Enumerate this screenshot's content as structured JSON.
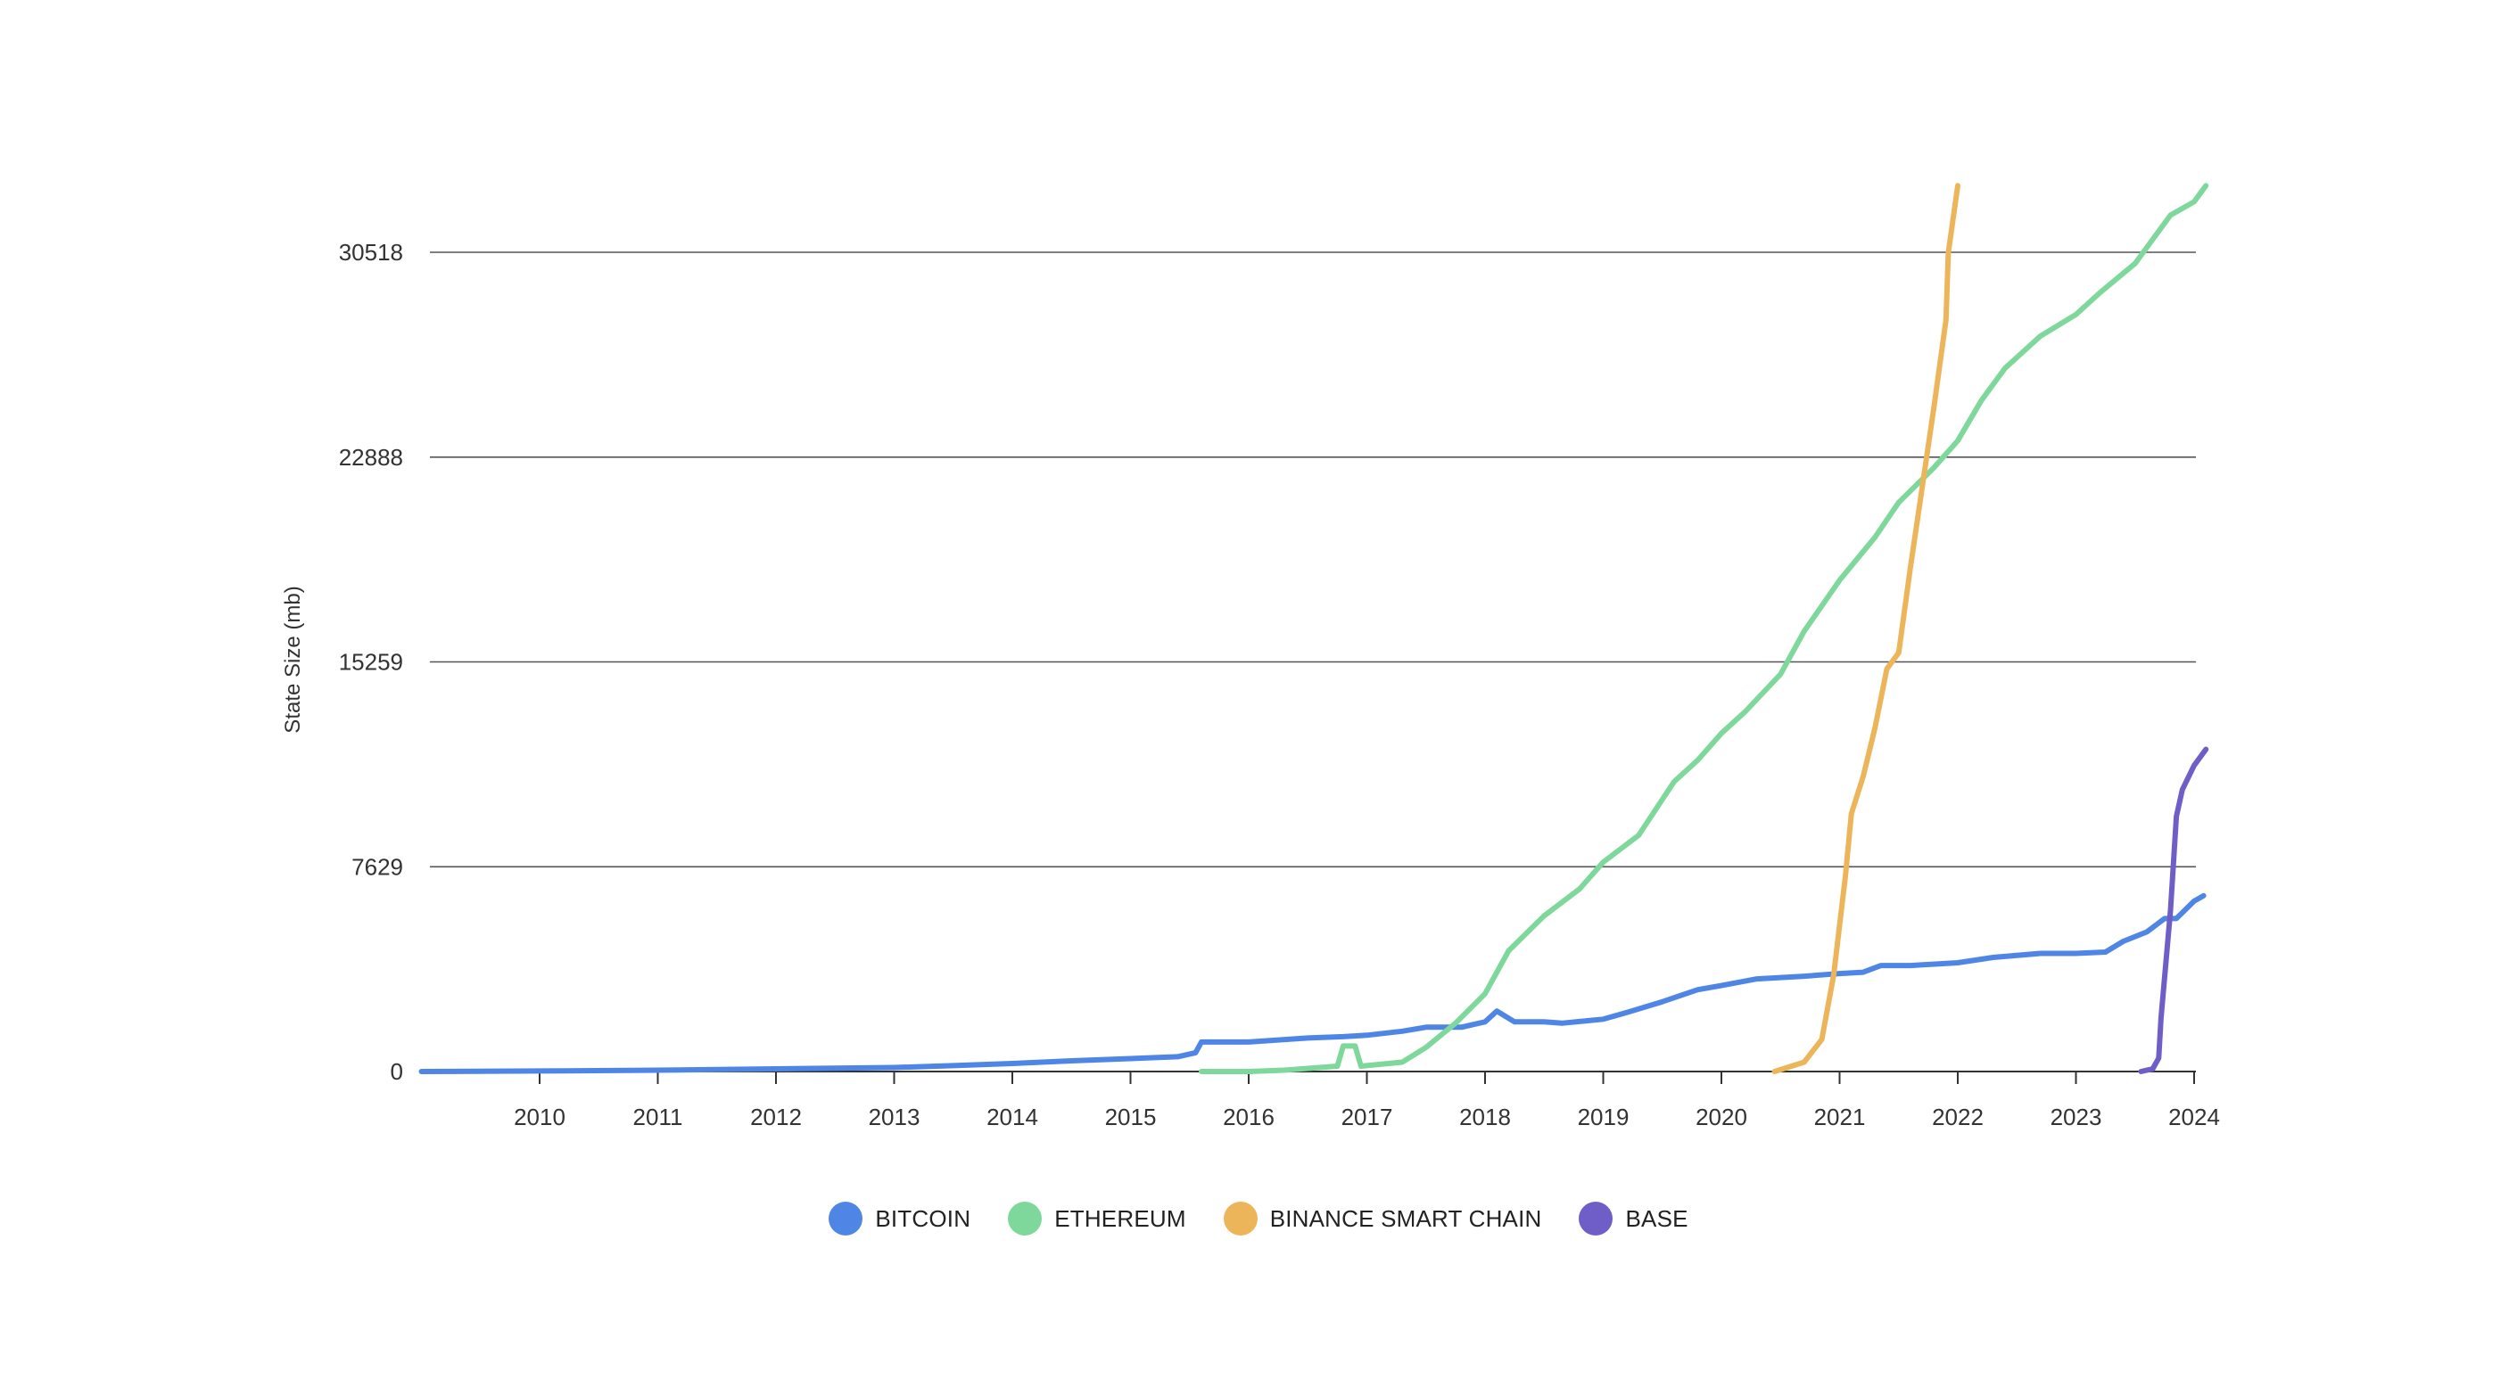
{
  "chart_data": {
    "type": "line",
    "title": "",
    "xlabel": "",
    "ylabel": "State Size (mb)",
    "xlim": [
      2009.0,
      2024.0
    ],
    "ylim": [
      0,
      33000
    ],
    "yticks": [
      0,
      7629,
      15259,
      22888,
      30518
    ],
    "ytick_labels": [
      "0",
      "7629",
      "15259",
      "22888",
      "30518"
    ],
    "xticks": [
      2010,
      2011,
      2012,
      2013,
      2014,
      2015,
      2016,
      2017,
      2018,
      2019,
      2020,
      2021,
      2022,
      2023,
      2024
    ],
    "xtick_labels": [
      "2010",
      "2011",
      "2012",
      "2013",
      "2014",
      "2015",
      "2016",
      "2017",
      "2018",
      "2019",
      "2020",
      "2021",
      "2022",
      "2023",
      "2024"
    ],
    "grid": "horizontal",
    "legend_position": "bottom-center",
    "series": [
      {
        "name": "BITCOIN",
        "color": "#4f86e6",
        "points": [
          [
            2009.0,
            0
          ],
          [
            2010.0,
            20
          ],
          [
            2011.0,
            50
          ],
          [
            2012.0,
            100
          ],
          [
            2013.0,
            150
          ],
          [
            2013.5,
            220
          ],
          [
            2014.0,
            300
          ],
          [
            2014.5,
            400
          ],
          [
            2015.0,
            480
          ],
          [
            2015.4,
            550
          ],
          [
            2015.55,
            700
          ],
          [
            2015.6,
            1100
          ],
          [
            2015.8,
            1100
          ],
          [
            2016.0,
            1100
          ],
          [
            2016.5,
            1250
          ],
          [
            2016.8,
            1300
          ],
          [
            2017.0,
            1350
          ],
          [
            2017.3,
            1500
          ],
          [
            2017.5,
            1650
          ],
          [
            2017.8,
            1650
          ],
          [
            2018.0,
            1850
          ],
          [
            2018.1,
            2250
          ],
          [
            2018.25,
            1850
          ],
          [
            2018.5,
            1850
          ],
          [
            2018.65,
            1800
          ],
          [
            2019.0,
            1950
          ],
          [
            2019.2,
            2200
          ],
          [
            2019.5,
            2600
          ],
          [
            2019.8,
            3050
          ],
          [
            2020.0,
            3200
          ],
          [
            2020.3,
            3450
          ],
          [
            2020.7,
            3550
          ],
          [
            2021.0,
            3650
          ],
          [
            2021.2,
            3700
          ],
          [
            2021.35,
            3950
          ],
          [
            2021.6,
            3950
          ],
          [
            2022.0,
            4050
          ],
          [
            2022.3,
            4250
          ],
          [
            2022.7,
            4400
          ],
          [
            2023.0,
            4400
          ],
          [
            2023.25,
            4450
          ],
          [
            2023.4,
            4850
          ],
          [
            2023.6,
            5200
          ],
          [
            2023.75,
            5700
          ],
          [
            2023.85,
            5700
          ],
          [
            2024.0,
            6350
          ],
          [
            2024.08,
            6550
          ]
        ]
      },
      {
        "name": "ETHEREUM",
        "color": "#7fd89b",
        "points": [
          [
            2015.6,
            0
          ],
          [
            2016.0,
            0
          ],
          [
            2016.3,
            50
          ],
          [
            2016.6,
            150
          ],
          [
            2016.75,
            200
          ],
          [
            2016.8,
            950
          ],
          [
            2016.9,
            950
          ],
          [
            2016.95,
            200
          ],
          [
            2017.3,
            350
          ],
          [
            2017.5,
            900
          ],
          [
            2017.75,
            1800
          ],
          [
            2018.0,
            2900
          ],
          [
            2018.2,
            4500
          ],
          [
            2018.5,
            5800
          ],
          [
            2018.8,
            6800
          ],
          [
            2019.0,
            7800
          ],
          [
            2019.3,
            8800
          ],
          [
            2019.6,
            10800
          ],
          [
            2019.8,
            11600
          ],
          [
            2020.0,
            12600
          ],
          [
            2020.2,
            13400
          ],
          [
            2020.5,
            14800
          ],
          [
            2020.7,
            16400
          ],
          [
            2021.0,
            18300
          ],
          [
            2021.3,
            19900
          ],
          [
            2021.5,
            21200
          ],
          [
            2021.8,
            22500
          ],
          [
            2022.0,
            23500
          ],
          [
            2022.2,
            25000
          ],
          [
            2022.4,
            26200
          ],
          [
            2022.7,
            27400
          ],
          [
            2023.0,
            28200
          ],
          [
            2023.2,
            29000
          ],
          [
            2023.5,
            30100
          ],
          [
            2023.65,
            31000
          ],
          [
            2023.8,
            31900
          ],
          [
            2024.0,
            32400
          ],
          [
            2024.1,
            33000
          ]
        ]
      },
      {
        "name": "BINANCE SMART CHAIN",
        "color": "#ecb55a",
        "points": [
          [
            2020.45,
            0
          ],
          [
            2020.7,
            350
          ],
          [
            2020.85,
            1200
          ],
          [
            2020.95,
            3600
          ],
          [
            2021.05,
            7300
          ],
          [
            2021.1,
            9600
          ],
          [
            2021.2,
            11000
          ],
          [
            2021.3,
            12800
          ],
          [
            2021.4,
            15000
          ],
          [
            2021.5,
            15600
          ],
          [
            2021.6,
            18800
          ],
          [
            2021.7,
            21800
          ],
          [
            2021.8,
            24800
          ],
          [
            2021.9,
            28000
          ],
          [
            2021.92,
            30500
          ],
          [
            2022.0,
            33000
          ]
        ]
      },
      {
        "name": "BASE",
        "color": "#6f5ec7",
        "points": [
          [
            2023.55,
            0
          ],
          [
            2023.65,
            100
          ],
          [
            2023.7,
            500
          ],
          [
            2023.72,
            2000
          ],
          [
            2023.8,
            6000
          ],
          [
            2023.85,
            9500
          ],
          [
            2023.9,
            10500
          ],
          [
            2024.0,
            11400
          ],
          [
            2024.1,
            12000
          ]
        ]
      }
    ]
  }
}
